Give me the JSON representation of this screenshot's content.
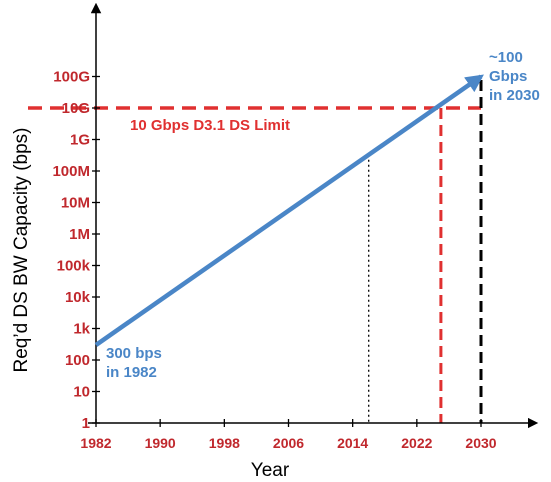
{
  "chart_data": {
    "type": "line",
    "title": "",
    "xlabel": "Year",
    "ylabel": "Req’d DS BW Capacity (bps)",
    "y_scale": "log10",
    "xlim": [
      1982,
      2030
    ],
    "ylim": [
      1,
      1000000000000
    ],
    "x_ticks": [
      1982,
      1990,
      1998,
      2006,
      2014,
      2022,
      2030
    ],
    "x_tick_labels": [
      "1982",
      "1990",
      "1998",
      "2006",
      "2014",
      "2022",
      "2030"
    ],
    "y_ticks": [
      1,
      10,
      100,
      1000,
      10000,
      100000,
      1000000,
      10000000,
      100000000,
      1000000000,
      10000000000,
      100000000000
    ],
    "y_tick_labels": [
      "1",
      "10",
      "100",
      "1k",
      "10k",
      "100k",
      "1M",
      "10M",
      "100M",
      "1G",
      "10G",
      "100G"
    ],
    "grid": false,
    "series": [
      {
        "name": "",
        "color": "#4a86c7",
        "x": [
          1982,
          2030
        ],
        "y": [
          300,
          100000000000
        ],
        "arrow_end": true
      }
    ],
    "reference_lines": [
      {
        "orientation": "horizontal",
        "y": 10000000000,
        "color": "#e03030",
        "style": "dashed",
        "label": "10 Gbps D3.1 DS Limit"
      },
      {
        "orientation": "vertical",
        "x": 2025,
        "color": "#e03030",
        "style": "dashed",
        "label": ""
      },
      {
        "orientation": "vertical",
        "x": 2030,
        "color": "#000000",
        "style": "dashed",
        "label": ""
      },
      {
        "orientation": "vertical",
        "x": 2016,
        "color": "#000000",
        "style": "dotted",
        "label": ""
      }
    ],
    "annotations": [
      {
        "lines": [
          "300 bps",
          "in 1982"
        ],
        "x": 1982,
        "y": 300,
        "color": "#4a86c7"
      },
      {
        "lines": [
          "~100",
          "Gbps",
          "in 2030"
        ],
        "x": 2030,
        "y": 100000000000,
        "color": "#4a86c7"
      }
    ],
    "colors": {
      "tick_labels": "#c0282d",
      "axes": "#000000",
      "series": "#4a86c7",
      "limit": "#e03030"
    }
  }
}
